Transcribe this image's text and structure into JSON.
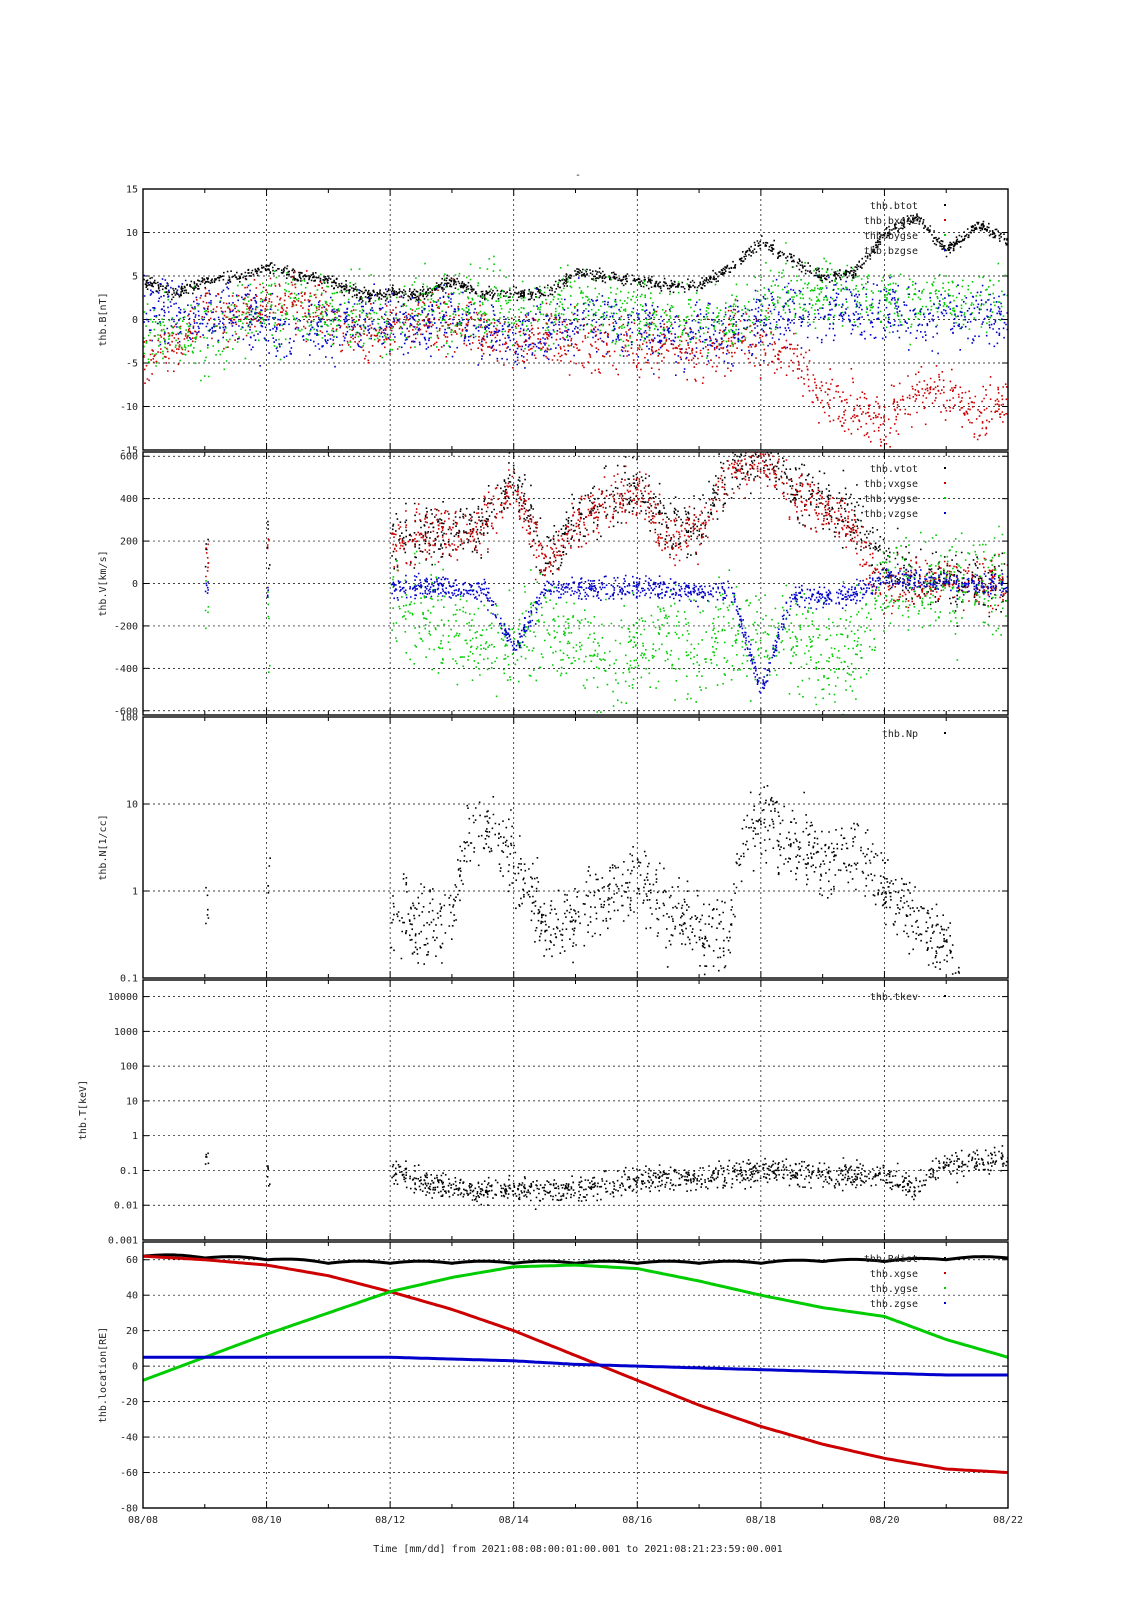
{
  "figure": {
    "title": "-",
    "xlabel": "Time [mm/dd]  from 2021:08:08:00:01:00.001  to  2021:08:21:23:59:00.001",
    "x_tick_labels": [
      "08/08",
      "08/10",
      "08/12",
      "08/14",
      "08/16",
      "08/18",
      "08/20",
      "08/22"
    ],
    "x_range_days": [
      0,
      14
    ]
  },
  "colors": {
    "black": "#000000",
    "red": "#cc0000",
    "green": "#00cc00",
    "blue": "#0000cc"
  },
  "chart_data": [
    {
      "type": "scatter",
      "ylabel": "thb.B[nT]",
      "ylim": [
        -15,
        15
      ],
      "log": false,
      "grid": true,
      "legend": "top-right",
      "yticks": [
        -15,
        -10,
        -5,
        0,
        5,
        10,
        15
      ],
      "series": [
        {
          "name": "thb.btot",
          "color": "black",
          "noise": 0.35,
          "x": [
            0,
            0.5,
            1,
            1.5,
            2,
            2.5,
            3,
            3.5,
            4,
            4.5,
            5,
            5.5,
            6,
            6.5,
            7,
            7.5,
            8,
            8.5,
            9,
            9.5,
            10,
            10.5,
            11,
            11.5,
            12,
            12.5,
            13,
            13.5,
            14
          ],
          "y": [
            4.5,
            3,
            4.5,
            5,
            6,
            5,
            4.5,
            3,
            3,
            3,
            4.5,
            3,
            3,
            3,
            5.5,
            5,
            4.5,
            4,
            4,
            6,
            9,
            7,
            5,
            5.5,
            10,
            12,
            8,
            11,
            9
          ]
        },
        {
          "name": "thb.bxgse",
          "color": "red",
          "noise": 1.6,
          "x": [
            0,
            0.5,
            1,
            1.5,
            2,
            2.5,
            3,
            3.5,
            4,
            4.5,
            5,
            5.5,
            6,
            6.5,
            7,
            7.5,
            8,
            8.5,
            9,
            9.5,
            10,
            10.5,
            11,
            11.5,
            12,
            12.5,
            13,
            13.5,
            14
          ],
          "y": [
            -4,
            -3,
            1,
            0,
            2,
            2,
            1,
            -2,
            -1,
            0,
            0,
            -1,
            -2,
            -2,
            -3,
            -3,
            -3,
            -2,
            -4,
            -2,
            -3,
            -4,
            -9,
            -10,
            -12,
            -8,
            -8,
            -11,
            -9
          ]
        },
        {
          "name": "thb.bygse",
          "color": "green",
          "noise": 2.0,
          "x": [
            0,
            0.5,
            1,
            1.5,
            2,
            2.5,
            3,
            3.5,
            4,
            4.5,
            5,
            5.5,
            6,
            6.5,
            7,
            7.5,
            8,
            8.5,
            9,
            9.5,
            10,
            10.5,
            11,
            11.5,
            12,
            12.5,
            13,
            13.5,
            14
          ],
          "y": [
            -1,
            -2,
            -2,
            0,
            1,
            1,
            1,
            1,
            -1,
            2,
            1,
            2,
            1,
            1,
            2,
            1,
            1,
            0,
            0,
            0,
            2,
            3,
            3,
            3,
            2,
            2,
            2,
            2,
            2
          ]
        },
        {
          "name": "thb.bzgse",
          "color": "blue",
          "noise": 1.8,
          "x": [
            0,
            0.5,
            1,
            1.5,
            2,
            2.5,
            3,
            3.5,
            4,
            4.5,
            5,
            5.5,
            6,
            6.5,
            7,
            7.5,
            8,
            8.5,
            9,
            9.5,
            10,
            10.5,
            11,
            11.5,
            12,
            12.5,
            13,
            13.5,
            14
          ],
          "y": [
            2,
            1,
            0,
            1,
            -1,
            -1,
            -1,
            0,
            0,
            -1,
            1,
            -1,
            -2,
            -1,
            0,
            0,
            -1,
            -2,
            -2,
            -1,
            0,
            1,
            1,
            1,
            1,
            0.5,
            0.5,
            0.5,
            0.5
          ]
        }
      ]
    },
    {
      "type": "scatter",
      "ylabel": "thb.V[km/s]",
      "ylim": [
        -620,
        620
      ],
      "log": false,
      "grid": true,
      "legend": "top-right",
      "yticks": [
        -600,
        -400,
        -200,
        0,
        200,
        400,
        600
      ],
      "segments": [
        [
          1.0,
          1.05
        ],
        [
          2.0,
          2.05
        ],
        [
          4.0,
          14.0
        ]
      ],
      "series": [
        {
          "name": "thb.vtot",
          "color": "black",
          "noise": 70,
          "x": [
            1.0,
            2.0,
            4.0,
            4.5,
            5.0,
            5.5,
            6.0,
            6.5,
            7.0,
            7.5,
            8.0,
            8.5,
            9.0,
            9.5,
            10.0,
            10.5,
            11.0,
            11.5,
            12.0,
            12.5,
            13.0,
            13.5,
            14.0
          ],
          "y": [
            120,
            200,
            200,
            220,
            250,
            300,
            500,
            120,
            300,
            400,
            450,
            250,
            300,
            550,
            620,
            450,
            400,
            300,
            100,
            30,
            15,
            10,
            10
          ]
        },
        {
          "name": "thb.vxgse",
          "color": "red",
          "noise": 60,
          "x": [
            1.0,
            2.0,
            4.0,
            4.5,
            5.0,
            5.5,
            6.0,
            6.5,
            7.0,
            7.5,
            8.0,
            8.5,
            9.0,
            9.5,
            10.0,
            10.5,
            11.0,
            11.5,
            12.0,
            12.5,
            13.0,
            13.5,
            14.0
          ],
          "y": [
            110,
            190,
            190,
            210,
            240,
            290,
            480,
            90,
            280,
            380,
            430,
            220,
            280,
            520,
            600,
            420,
            380,
            250,
            -50,
            20,
            10,
            5,
            5
          ]
        },
        {
          "name": "thb.vygse",
          "color": "green",
          "noise": 120,
          "x": [
            1.0,
            2.0,
            4.0,
            4.5,
            5.0,
            5.5,
            6.0,
            6.5,
            7.0,
            7.5,
            8.0,
            8.5,
            9.0,
            9.5,
            10.0,
            10.5,
            11.0,
            11.5,
            12.0,
            12.5,
            13.0,
            13.5,
            14.0
          ],
          "y": [
            -60,
            -200,
            -100,
            -150,
            -200,
            -250,
            -300,
            -150,
            -300,
            -350,
            -300,
            -250,
            -300,
            -200,
            -300,
            -250,
            -300,
            -350,
            0,
            10,
            5,
            5,
            0
          ]
        },
        {
          "name": "thb.vzgse",
          "color": "blue",
          "noise": 25,
          "x": [
            1.0,
            2.0,
            4.0,
            4.5,
            5.0,
            5.5,
            6.0,
            6.5,
            7.0,
            7.5,
            8.0,
            8.5,
            9.0,
            9.5,
            10.0,
            10.5,
            11.0,
            11.5,
            12.0,
            12.5,
            13.0,
            13.5,
            14.0
          ],
          "y": [
            -20,
            -50,
            -20,
            -20,
            -20,
            -20,
            -300,
            -20,
            -20,
            -20,
            -20,
            -20,
            -30,
            -20,
            -500,
            -50,
            -60,
            -50,
            30,
            20,
            10,
            0,
            0
          ]
        }
      ]
    },
    {
      "type": "scatter",
      "ylabel": "thb.N[1/cc]",
      "ylim": [
        0.1,
        100
      ],
      "log": true,
      "grid": true,
      "legend": "top-right",
      "yticks": [
        0.1,
        1,
        10,
        100
      ],
      "ytick_labels": [
        "0.1",
        "1",
        "10",
        "100"
      ],
      "segments": [
        [
          1.0,
          1.05
        ],
        [
          2.0,
          2.05
        ],
        [
          4.0,
          13.2
        ]
      ],
      "series": [
        {
          "name": "thb.Np",
          "color": "black",
          "noise": 0.22,
          "x": [
            1.0,
            2.0,
            4.0,
            4.5,
            5.0,
            5.5,
            6.0,
            6.5,
            7.0,
            7.5,
            8.0,
            8.5,
            9.0,
            9.5,
            10.0,
            10.5,
            11.0,
            11.5,
            12.0,
            12.5,
            13.0,
            13.2
          ],
          "y": [
            0.8,
            1.5,
            0.5,
            0.4,
            0.5,
            7,
            2,
            0.3,
            0.5,
            1,
            1.5,
            0.6,
            0.3,
            0.3,
            7,
            4,
            2,
            3,
            1,
            0.4,
            0.2,
            0.12
          ]
        }
      ]
    },
    {
      "type": "scatter",
      "ylabel": "thb.T[keV]",
      "ylim": [
        0.001,
        30000
      ],
      "log": true,
      "grid": true,
      "legend": "top-right",
      "yticks": [
        0.001,
        0.01,
        0.1,
        1,
        10,
        100,
        1000,
        10000
      ],
      "ytick_labels": [
        "0.001",
        "0.01",
        "0.1",
        "1",
        "10",
        "100",
        "1000",
        "10000"
      ],
      "segments": [
        [
          1.0,
          1.05
        ],
        [
          2.0,
          2.05
        ],
        [
          4.0,
          14.0
        ]
      ],
      "series": [
        {
          "name": "thb.tkev",
          "color": "black",
          "noise": 0.18,
          "x": [
            1.0,
            2.0,
            4.0,
            4.5,
            5.0,
            5.5,
            6.0,
            6.5,
            7.0,
            7.5,
            8.0,
            8.5,
            9.0,
            9.5,
            10.0,
            10.5,
            11.0,
            11.5,
            12.0,
            12.5,
            13.0,
            13.5,
            14.0
          ],
          "y": [
            0.2,
            0.08,
            0.1,
            0.04,
            0.035,
            0.03,
            0.03,
            0.03,
            0.03,
            0.04,
            0.05,
            0.06,
            0.07,
            0.08,
            0.1,
            0.09,
            0.08,
            0.07,
            0.07,
            0.03,
            0.15,
            0.2,
            0.25
          ]
        }
      ]
    },
    {
      "type": "line",
      "ylabel": "thb.location[RE]",
      "ylim": [
        -80,
        70
      ],
      "log": false,
      "grid": true,
      "legend": "top-right",
      "yticks": [
        -80,
        -60,
        -40,
        -20,
        0,
        20,
        40,
        60
      ],
      "series": [
        {
          "name": "thb.Rdist",
          "color": "black",
          "x": [
            0,
            1,
            2,
            3,
            4,
            5,
            6,
            7,
            8,
            9,
            10,
            11,
            12,
            13,
            14
          ],
          "y": [
            62,
            61,
            60,
            58,
            58,
            58,
            58,
            58,
            58,
            58,
            58,
            59,
            59,
            60,
            61
          ]
        },
        {
          "name": "thb.xgse",
          "color": "red",
          "x": [
            0,
            1,
            2,
            3,
            4,
            5,
            6,
            7,
            8,
            9,
            10,
            11,
            12,
            13,
            14
          ],
          "y": [
            62,
            60,
            57,
            51,
            42,
            32,
            20,
            6,
            -8,
            -22,
            -34,
            -44,
            -52,
            -58,
            -60
          ]
        },
        {
          "name": "thb.ygse",
          "color": "green",
          "x": [
            0,
            1,
            2,
            3,
            4,
            5,
            6,
            7,
            8,
            9,
            10,
            11,
            12,
            13,
            14
          ],
          "y": [
            -8,
            5,
            18,
            30,
            42,
            50,
            56,
            57,
            55,
            48,
            40,
            33,
            28,
            15,
            5
          ]
        },
        {
          "name": "thb.zgse",
          "color": "blue",
          "x": [
            0,
            1,
            2,
            3,
            4,
            5,
            6,
            7,
            8,
            9,
            10,
            11,
            12,
            13,
            14
          ],
          "y": [
            5,
            5,
            5,
            5,
            5,
            4,
            3,
            1,
            0,
            -1,
            -2,
            -3,
            -4,
            -5,
            -5
          ]
        }
      ]
    }
  ]
}
